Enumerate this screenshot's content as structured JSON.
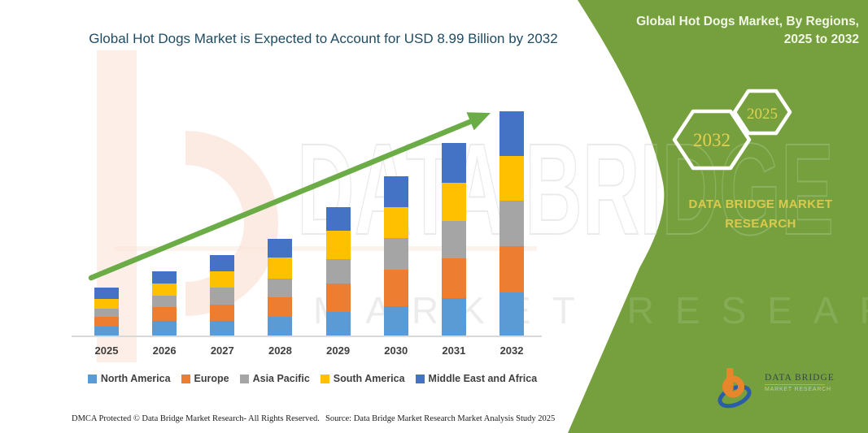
{
  "title": "Global Hot Dogs Market is Expected to Account for USD 8.99 Billion by 2032",
  "right_panel": {
    "heading": "Global Hot Dogs Market, By Regions, 2025 to 2032",
    "hexagon_years": [
      "2032",
      "2025"
    ],
    "brand_text": "DATA BRIDGE MARKET RESEARCH",
    "logo_name": "DATA BRIDGE",
    "logo_sub": "MARKET RESEARCH",
    "bg_color": "#75A03D",
    "gold_color": "#DBC94B"
  },
  "watermark": {
    "text_large": "DATA BRIDGE",
    "text_row": "MARKET RESEARCH"
  },
  "footer": {
    "dmca": "DMCA Protected © Data Bridge Market Research-  All Rights Reserved.",
    "source": "Source: Data Bridge Market Research  Market Analysis Study 2025"
  },
  "chart_data": {
    "type": "bar",
    "stacked": true,
    "title": "Global Hot Dogs Market is Expected to Account for USD 8.99 Billion by 2032",
    "unit": "USD Billion",
    "categories": [
      "2025",
      "2026",
      "2027",
      "2028",
      "2029",
      "2030",
      "2031",
      "2032"
    ],
    "series": [
      {
        "name": "North America",
        "color": "#5B9BD5",
        "values": [
          0.39,
          0.62,
          0.62,
          0.78,
          0.97,
          1.2,
          1.53,
          1.75
        ]
      },
      {
        "name": "Europe",
        "color": "#ED7D31",
        "values": [
          0.39,
          0.55,
          0.65,
          0.78,
          1.14,
          1.46,
          1.59,
          1.85
        ]
      },
      {
        "name": "Asia Pacific",
        "color": "#A5A5A5",
        "values": [
          0.32,
          0.45,
          0.68,
          0.75,
          0.97,
          1.27,
          1.49,
          1.82
        ]
      },
      {
        "name": "South America",
        "color": "#FFC000",
        "values": [
          0.39,
          0.49,
          0.65,
          0.84,
          1.14,
          1.23,
          1.53,
          1.78
        ]
      },
      {
        "name": "Middle East and Africa",
        "color": "#4472C4",
        "values": [
          0.45,
          0.49,
          0.65,
          0.75,
          0.94,
          1.23,
          1.59,
          1.79
        ]
      }
    ],
    "estimated_totals": [
      1.94,
      2.6,
      3.25,
      3.9,
      5.16,
      6.39,
      7.73,
      8.99
    ],
    "final_value_label": "USD 8.99 Billion by 2032",
    "ylim": [
      0,
      9.2
    ],
    "grid": false,
    "y_axis_labels": false,
    "legend_position": "bottom",
    "annotation": "green upward trend arrow across bars",
    "trend_arrow_color": "#6BAC47"
  }
}
